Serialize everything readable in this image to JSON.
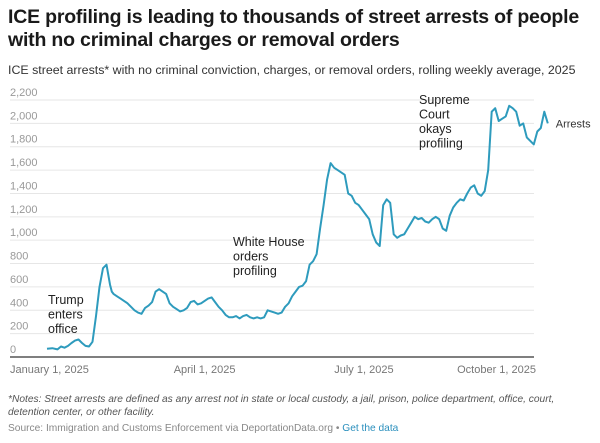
{
  "header": {
    "title": "ICE profiling is leading to thousands of street arrests of people with no criminal charges or removal orders",
    "subtitle": "ICE street arrests* with no criminal conviction, charges, or removal orders, rolling weekly average, 2025"
  },
  "footer": {
    "notes": "*Notes: Street arrests are defined as any arrest not in state or local custody, a jail, prison, police department, office, court, detention center, or other facility.",
    "source": "Source: Immigration and Customs Enforcement via DeportationData.org",
    "separator": " • ",
    "link_label": "Get the data"
  },
  "colors": {
    "line": "#2e9bbd",
    "grid": "#e6e6e6",
    "axis": "#333333"
  },
  "chart_data": {
    "type": "line",
    "title": "ICE street arrests* with no criminal conviction, charges, or removal orders, rolling weekly average, 2025",
    "xlabel": "",
    "ylabel": "",
    "ylim": [
      0,
      2200
    ],
    "yticks": [
      0,
      200,
      400,
      600,
      800,
      1000,
      1200,
      1400,
      1600,
      1800,
      2000,
      2200
    ],
    "ytick_labels": [
      "0",
      "200",
      "400",
      "600",
      "800",
      "1,000",
      "1,200",
      "1,400",
      "1,600",
      "1,800",
      "2,000",
      "2,200"
    ],
    "xlim_day_of_year": [
      0,
      290
    ],
    "xticks": [
      {
        "day": 0,
        "label": "January 1, 2025"
      },
      {
        "day": 90,
        "label": "April 1, 2025"
      },
      {
        "day": 181,
        "label": "July 1, 2025"
      },
      {
        "day": 273,
        "label": "October 1, 2025"
      }
    ],
    "grid": true,
    "legend": "direct label at line end",
    "series": [
      {
        "name": "Arrests",
        "x_day_of_year": [
          0,
          3,
          6,
          8,
          10,
          12,
          14,
          16,
          18,
          20,
          22,
          24,
          26,
          28,
          30,
          32,
          34,
          36,
          37,
          38,
          40,
          42,
          44,
          46,
          48,
          50,
          52,
          54,
          56,
          58,
          60,
          62,
          64,
          66,
          68,
          70,
          72,
          74,
          76,
          78,
          80,
          82,
          84,
          86,
          88,
          90,
          92,
          94,
          96,
          98,
          100,
          102,
          104,
          106,
          108,
          110,
          112,
          114,
          116,
          118,
          120,
          122,
          124,
          126,
          128,
          130,
          132,
          134,
          136,
          138,
          140,
          142,
          144,
          146,
          148,
          150,
          152,
          154,
          156,
          158,
          160,
          162,
          164,
          166,
          168,
          170,
          172,
          174,
          176,
          178,
          180,
          182,
          184,
          186,
          188,
          190,
          192,
          194,
          196,
          198,
          200,
          202,
          204,
          206,
          208,
          210,
          212,
          214,
          216,
          218,
          220,
          222,
          224,
          226,
          228,
          230,
          232,
          234,
          236,
          238,
          240,
          242,
          244,
          246,
          248,
          250,
          252,
          254,
          256,
          258,
          260,
          262,
          264,
          266,
          268,
          270,
          272,
          274,
          276,
          278,
          280,
          282,
          284,
          286
        ],
        "y": [
          70,
          75,
          65,
          90,
          80,
          95,
          120,
          140,
          150,
          120,
          95,
          90,
          130,
          350,
          600,
          760,
          790,
          620,
          560,
          540,
          520,
          500,
          480,
          460,
          430,
          400,
          380,
          370,
          420,
          440,
          470,
          560,
          580,
          560,
          540,
          460,
          430,
          410,
          390,
          400,
          420,
          470,
          480,
          450,
          460,
          480,
          500,
          510,
          470,
          430,
          400,
          360,
          340,
          340,
          350,
          330,
          350,
          360,
          340,
          330,
          340,
          330,
          340,
          400,
          390,
          380,
          370,
          380,
          430,
          460,
          520,
          560,
          600,
          610,
          650,
          790,
          820,
          880,
          1100,
          1300,
          1520,
          1660,
          1620,
          1600,
          1580,
          1560,
          1400,
          1380,
          1320,
          1300,
          1260,
          1220,
          1180,
          1050,
          980,
          950,
          1300,
          1350,
          1320,
          1050,
          1020,
          1040,
          1050,
          1100,
          1150,
          1200,
          1180,
          1190,
          1160,
          1150,
          1180,
          1200,
          1180,
          1100,
          1080,
          1210,
          1280,
          1320,
          1350,
          1340,
          1400,
          1450,
          1470,
          1400,
          1380,
          1420,
          1600,
          2100,
          2130,
          2020,
          2040,
          2060,
          2150,
          2130,
          2100,
          1980,
          2000,
          1880,
          1850,
          1820,
          1930,
          1960,
          2100,
          2000,
          1990,
          2050
        ]
      }
    ],
    "annotations": [
      {
        "day": 20,
        "lines": [
          "Trump",
          "enters",
          "office"
        ]
      },
      {
        "day": 110,
        "lines": [
          "White House",
          "orders",
          "profiling"
        ]
      },
      {
        "day": 250,
        "lines": [
          "Supreme",
          "Court",
          "okays",
          "profiling"
        ]
      }
    ]
  }
}
